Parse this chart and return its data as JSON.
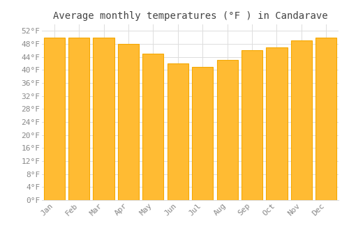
{
  "title": "Average monthly temperatures (°F ) in Candarave",
  "months": [
    "Jan",
    "Feb",
    "Mar",
    "Apr",
    "May",
    "Jun",
    "Jul",
    "Aug",
    "Sep",
    "Oct",
    "Nov",
    "Dec"
  ],
  "values": [
    50,
    50,
    50,
    48,
    45,
    42,
    41,
    43,
    46,
    47,
    49,
    50
  ],
  "bar_color": "#FFBB33",
  "bar_edge_color": "#F5A800",
  "background_color": "#FFFFFF",
  "grid_color": "#DDDDDD",
  "text_color": "#888888",
  "title_color": "#444444",
  "ylim": [
    0,
    54
  ],
  "yticks": [
    0,
    4,
    8,
    12,
    16,
    20,
    24,
    28,
    32,
    36,
    40,
    44,
    48,
    52
  ],
  "ytick_labels": [
    "0°F",
    "4°F",
    "8°F",
    "12°F",
    "16°F",
    "20°F",
    "24°F",
    "28°F",
    "32°F",
    "36°F",
    "40°F",
    "44°F",
    "48°F",
    "52°F"
  ],
  "title_fontsize": 10,
  "tick_fontsize": 8,
  "font_family": "monospace",
  "bar_width": 0.85
}
